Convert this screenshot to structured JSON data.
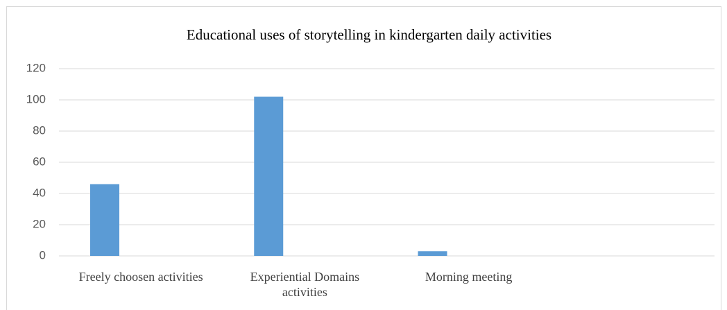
{
  "chart_data": {
    "type": "bar",
    "title": "Educational uses of storytelling in kindergarten daily activities",
    "categories": [
      "Freely choosen activities",
      "Experiential Domains activities",
      "Morning meeting",
      null
    ],
    "values": [
      46,
      102,
      3,
      null
    ],
    "color": "#5b9bd5",
    "ylim": [
      0,
      120
    ],
    "yticks": [
      0,
      20,
      40,
      60,
      80,
      100,
      120
    ],
    "grid": true
  }
}
